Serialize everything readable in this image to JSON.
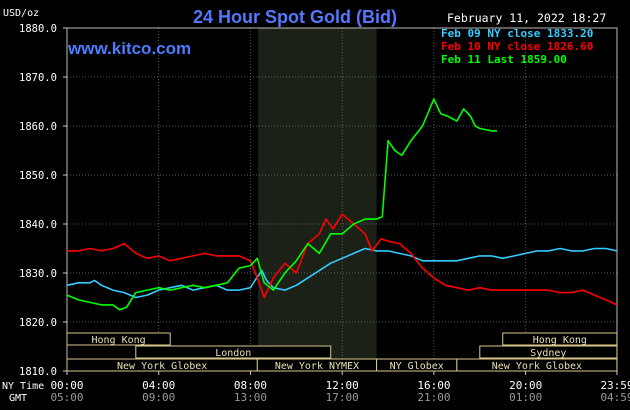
{
  "chart_data": {
    "type": "line",
    "title": "24 Hour Spot Gold (Bid)",
    "source": "www.kitco.com",
    "date_label": "February 11, 2022 18:27",
    "ylabel": "USD/oz",
    "ylim": [
      1810,
      1880
    ],
    "yticks": [
      "1810.0",
      "1820.0",
      "1830.0",
      "1840.0",
      "1850.0",
      "1860.0",
      "1870.0",
      "1880.0"
    ],
    "x_row_labels": {
      "ny": "NY Time",
      "gmt": "GMT"
    },
    "x_ny_ticks": [
      "00:00",
      "04:00",
      "08:00",
      "12:00",
      "16:00",
      "20:00",
      "23:59"
    ],
    "x_gmt_ticks": [
      "05:00",
      "09:00",
      "13:00",
      "17:00",
      "21:00",
      "01:00",
      "04:59"
    ],
    "x_hours": [
      0,
      4,
      8,
      12,
      16,
      20,
      23.983
    ],
    "nymex_session_hours": [
      8.333,
      13.5
    ],
    "grid": true,
    "legend_position": "top-right",
    "series": [
      {
        "name": "Feb 09 NY close 1833.20",
        "color": "#33ccff",
        "x": [
          0,
          0.5,
          1,
          1.2,
          1.5,
          2,
          2.5,
          3,
          3.5,
          4,
          4.5,
          5,
          5.5,
          6,
          6.5,
          7,
          7.5,
          8,
          8.2,
          8.5,
          8.7,
          9,
          9.5,
          10,
          10.5,
          11,
          11.5,
          12,
          12.5,
          13,
          13.5,
          14,
          14.5,
          15,
          15.5,
          16,
          16.5,
          17,
          17.5,
          18,
          18.5,
          19,
          19.5,
          20,
          20.5,
          21,
          21.5,
          22,
          22.5,
          23,
          23.5,
          23.98
        ],
        "y": [
          1827.5,
          1828,
          1828,
          1828.5,
          1827.5,
          1826.5,
          1826,
          1825,
          1825.5,
          1826.5,
          1827,
          1827.5,
          1826.5,
          1827,
          1827.5,
          1826.5,
          1826.5,
          1827,
          1828.5,
          1830.5,
          1828.5,
          1827,
          1826.5,
          1827.5,
          1829,
          1830.5,
          1832,
          1833,
          1834,
          1835,
          1834.5,
          1834.5,
          1834,
          1833.5,
          1832.5,
          1832.5,
          1832.5,
          1832.5,
          1833,
          1833.5,
          1833.5,
          1833,
          1833.5,
          1834,
          1834.5,
          1834.5,
          1835,
          1834.5,
          1834.5,
          1835,
          1835,
          1834.5
        ]
      },
      {
        "name": "Feb 10 NY close 1826.60",
        "color": "#ff0000",
        "x": [
          0,
          0.5,
          1,
          1.5,
          2,
          2.5,
          3,
          3.5,
          4,
          4.5,
          5,
          5.5,
          6,
          6.5,
          7,
          7.5,
          8,
          8.3,
          8.6,
          9,
          9.5,
          10,
          10.5,
          11,
          11.3,
          11.6,
          12,
          12.5,
          13,
          13.3,
          13.7,
          14,
          14.5,
          15,
          15.5,
          16,
          16.5,
          17,
          17.5,
          18,
          18.5,
          19,
          19.5,
          20,
          20.5,
          21,
          21.5,
          22,
          22.5,
          23,
          23.5,
          23.98
        ],
        "y": [
          1834.5,
          1834.5,
          1835,
          1834.5,
          1835,
          1836,
          1834,
          1833,
          1833.5,
          1832.5,
          1833,
          1833.5,
          1834,
          1833.5,
          1833.5,
          1833.5,
          1832.5,
          1829,
          1825,
          1829,
          1832,
          1830,
          1836,
          1838,
          1841,
          1839,
          1842,
          1840,
          1838,
          1834.5,
          1837,
          1836.5,
          1836,
          1834,
          1831,
          1829,
          1827.5,
          1827,
          1826.5,
          1827,
          1826.5,
          1826.5,
          1826.5,
          1826.5,
          1826.5,
          1826.5,
          1826,
          1826,
          1826.5,
          1825.5,
          1824.5,
          1823.5
        ]
      },
      {
        "name": "Feb 11 Last 1859.00",
        "color": "#00ff00",
        "x": [
          0,
          0.5,
          1,
          1.5,
          2,
          2.3,
          2.6,
          3,
          3.5,
          4,
          4.5,
          5,
          5.5,
          6,
          6.5,
          7,
          7.5,
          8,
          8.3,
          8.6,
          9,
          9.5,
          10,
          10.5,
          11,
          11.5,
          12,
          12.5,
          13,
          13.5,
          13.75,
          14,
          14.3,
          14.6,
          15,
          15.5,
          16,
          16.3,
          16.6,
          17,
          17.3,
          17.6,
          17.8,
          18,
          18.5,
          18.75
        ],
        "y": [
          1825.5,
          1824.5,
          1824,
          1823.5,
          1823.5,
          1822.5,
          1823,
          1826,
          1826.5,
          1827,
          1826.5,
          1827,
          1827.5,
          1827,
          1827.5,
          1828,
          1831,
          1831.5,
          1833,
          1828,
          1826.5,
          1830,
          1832.5,
          1836,
          1834,
          1838,
          1838,
          1840,
          1841,
          1841,
          1841.5,
          1857,
          1855,
          1854,
          1857,
          1860,
          1865.5,
          1862.5,
          1862,
          1861,
          1863.5,
          1862,
          1860,
          1859.5,
          1859,
          1859
        ]
      }
    ],
    "sessions": [
      {
        "label": "Hong Kong",
        "start": 0,
        "end": 4.5,
        "row": 0
      },
      {
        "label": "Hong Kong",
        "start": 19,
        "end": 23.98,
        "row": 0
      },
      {
        "label": "London",
        "start": 3,
        "end": 11.5,
        "row": 1
      },
      {
        "label": "Sydney",
        "start": 18,
        "end": 23.98,
        "row": 1
      },
      {
        "label": "New York Globex",
        "start": 0,
        "end": 8.3,
        "row": 2
      },
      {
        "label": "New York NYMEX",
        "start": 8.3,
        "end": 13.5,
        "row": 2
      },
      {
        "label": "NY Globex",
        "start": 13.5,
        "end": 17,
        "row": 2
      },
      {
        "label": "New York Globex",
        "start": 17,
        "end": 23.98,
        "row": 2
      }
    ]
  }
}
